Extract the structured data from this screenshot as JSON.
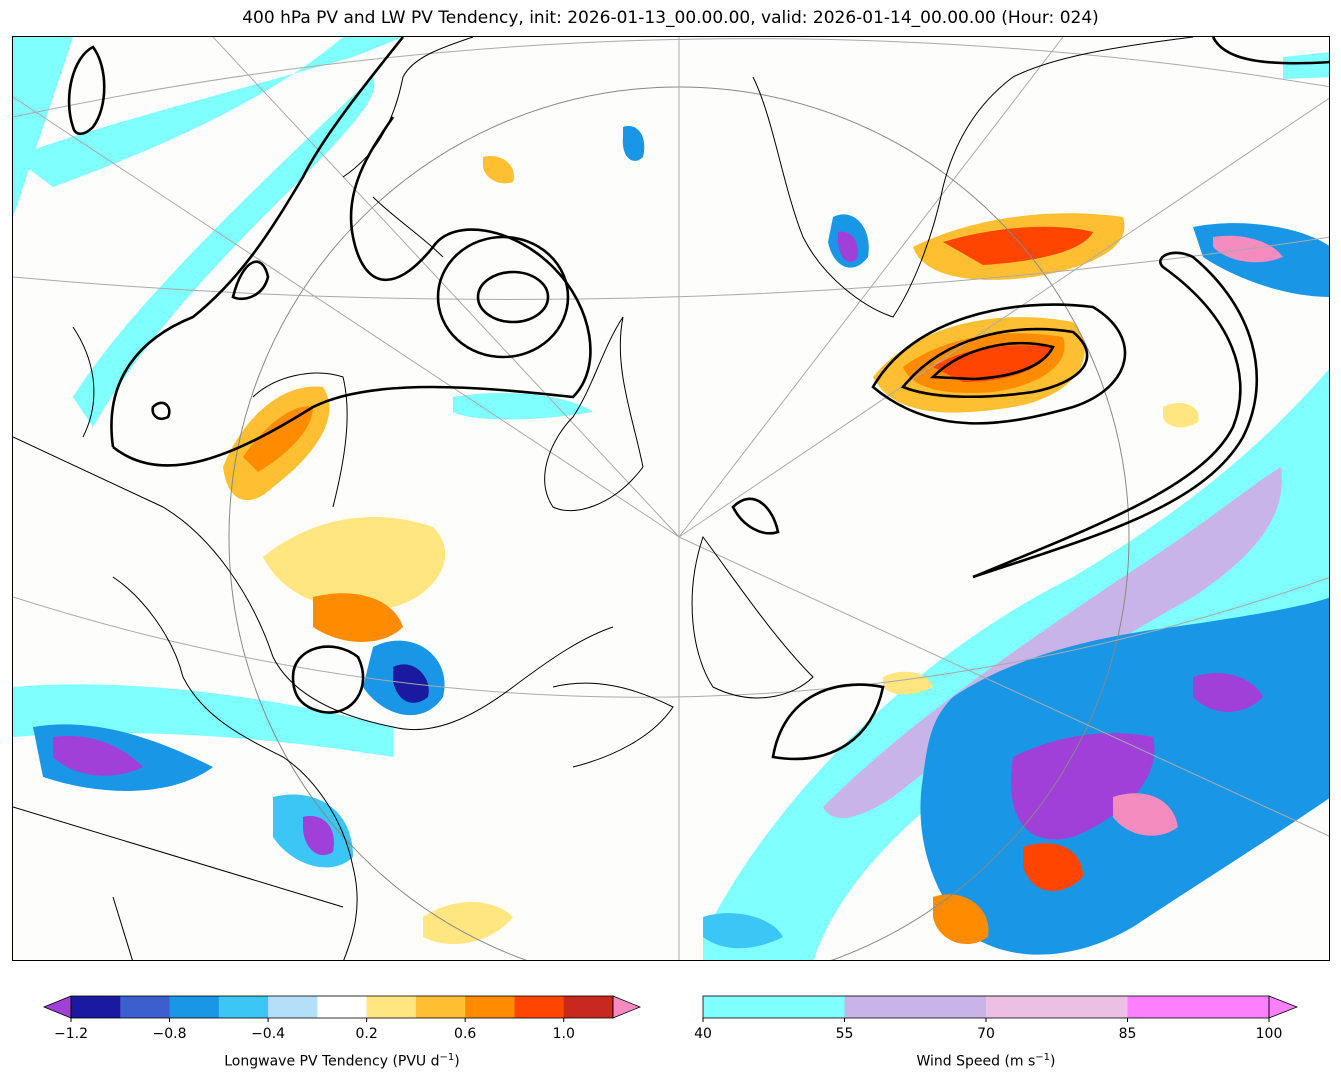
{
  "title": "400 hPa PV and LW PV Tendency, init: 2026-01-13_00.00.00, valid: 2026-01-14_00.00.00 (Hour: 024)",
  "pv_tendency_colorbar": {
    "label": "Longwave PV Tendency (PVU d",
    "label_exp": "−1",
    "label_end": ")",
    "tick_labels": [
      "−1.2",
      "−0.8",
      "−0.4",
      "0.2",
      "0.6",
      "1.0"
    ],
    "ticks": [
      -1.2,
      -0.8,
      -0.4,
      0.2,
      0.6,
      1.0
    ],
    "bounds": [
      -1.2,
      -1.0,
      -0.8,
      -0.6,
      -0.4,
      -0.2,
      0.2,
      0.4,
      0.6,
      0.8,
      1.0,
      1.2
    ],
    "colors": [
      "#1a1aa0",
      "#3b5fcf",
      "#1a96e6",
      "#3cc6f5",
      "#b3dff9",
      "#ffffff",
      "#ffe680",
      "#ffbf33",
      "#ff8c00",
      "#ff4500",
      "#c8281e"
    ],
    "under_color": "#a040d8",
    "over_color": "#f48cc0"
  },
  "wind_colorbar": {
    "label": "Wind Speed (m s",
    "label_exp": "−1",
    "label_end": ")",
    "tick_labels": [
      "40",
      "55",
      "70",
      "85",
      "100"
    ],
    "ticks": [
      40,
      55,
      70,
      85,
      100
    ],
    "colors": [
      "#80ffff",
      "#c8b4e6",
      "#ecc0e4",
      "#ff80ff"
    ],
    "over_color": "#ff80ff"
  },
  "colors": {
    "cyan": "#80ffff",
    "lavender": "#c8b4e6",
    "coast": "#000000",
    "grid": "#aaaaaa"
  }
}
